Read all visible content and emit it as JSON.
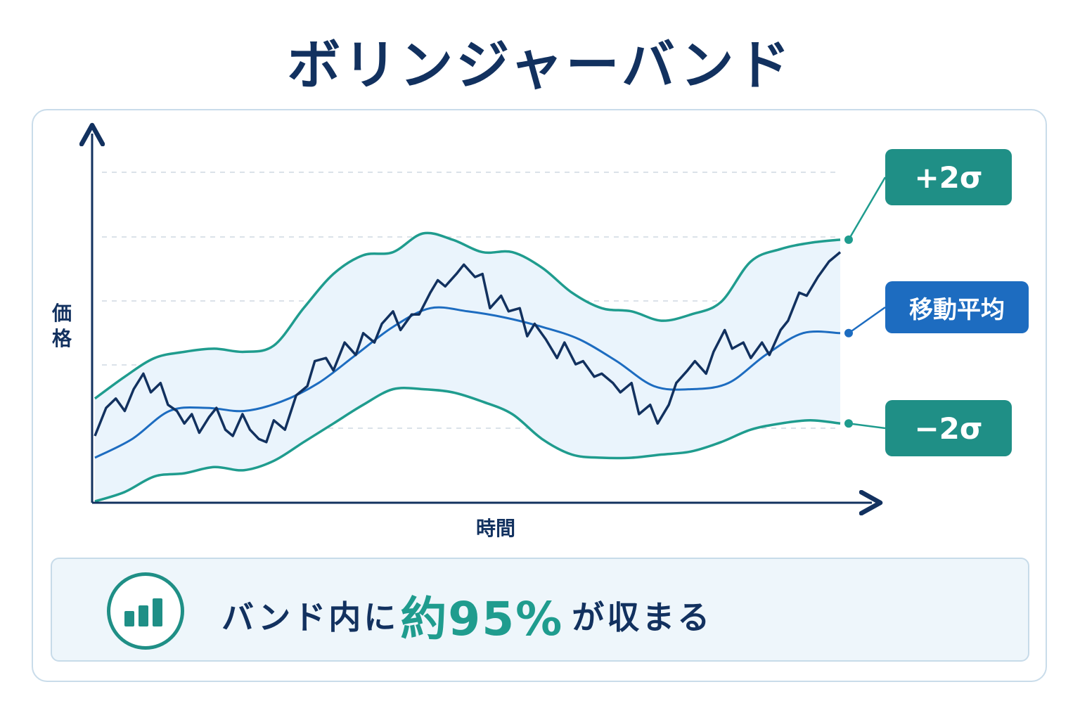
{
  "title": "ボリンジャーバンド",
  "colors": {
    "band": "#1f9c8e",
    "band_fill": "#eaf4fc",
    "moving_average": "#1d6cc0",
    "price": "#12315f",
    "tag_band": "#1f8f86",
    "tag_ma": "#1d6cc0",
    "highlight": "#1f9c8e"
  },
  "chart_data": {
    "type": "line",
    "ylabel": "価格",
    "xlabel": "時間",
    "grid": "horizontal dashed",
    "ylim": [
      0,
      100
    ],
    "xlim": [
      0,
      100
    ],
    "series": [
      {
        "name": "+2σ",
        "style": "band-upper",
        "x": [
          0,
          4,
          8,
          12,
          16,
          20,
          24,
          28,
          32,
          36,
          40,
          44,
          48,
          52,
          56,
          60,
          64,
          68,
          72,
          76,
          80,
          84,
          88,
          92,
          96,
          100
        ],
        "y": [
          33,
          40,
          46,
          48,
          49,
          48,
          50,
          62,
          73,
          79,
          80,
          86,
          84,
          80,
          80,
          75,
          67,
          62,
          61,
          58,
          60,
          64,
          77,
          81,
          83,
          84
        ]
      },
      {
        "name": "移動平均",
        "style": "ma",
        "x": [
          0,
          5,
          10,
          15,
          20,
          25,
          30,
          35,
          40,
          45,
          50,
          55,
          60,
          65,
          70,
          75,
          80,
          85,
          90,
          95,
          100
        ],
        "y": [
          14,
          20,
          29,
          30,
          29,
          32,
          38,
          47,
          56,
          62,
          61,
          59,
          56,
          52,
          45,
          37,
          36,
          38,
          47,
          54,
          54
        ]
      },
      {
        "name": "−2σ",
        "style": "band-lower",
        "x": [
          0,
          4,
          8,
          12,
          16,
          20,
          24,
          28,
          32,
          36,
          40,
          44,
          48,
          52,
          56,
          60,
          64,
          68,
          72,
          76,
          80,
          84,
          88,
          92,
          96,
          100
        ],
        "y": [
          0,
          3,
          8,
          9,
          11,
          10,
          13,
          19,
          25,
          31,
          36,
          36,
          35,
          32,
          28,
          20,
          15,
          14,
          14,
          15,
          16,
          19,
          23,
          25,
          26,
          25
        ]
      },
      {
        "name": "",
        "style": "price",
        "x": [
          0,
          1.5,
          2.8,
          4,
          5.2,
          6.5,
          7.5,
          8.8,
          9.8,
          11,
          12,
          13,
          14,
          15.3,
          16.3,
          17.5,
          18.5,
          19.8,
          20.8,
          22,
          23,
          24,
          25.5,
          27,
          28.5,
          29.5,
          31,
          32,
          33.5,
          35,
          36,
          37.5,
          38.5,
          40,
          41,
          42.5,
          43.5,
          45,
          46,
          47,
          48.5,
          49.5,
          51,
          52,
          53,
          54.5,
          55.5,
          57,
          58,
          59,
          60.5,
          62,
          63,
          64.5,
          65.5,
          67,
          68,
          69.5,
          70.5,
          72,
          73,
          74.5,
          75.5,
          77,
          78,
          79.5,
          80.5,
          82,
          83,
          84.5,
          85.5,
          87,
          88,
          89.5,
          90.5,
          92,
          93,
          94.5,
          95.5,
          97,
          98.5,
          100
        ],
        "y": [
          21,
          30,
          33,
          29,
          36,
          41,
          35,
          38,
          31,
          29,
          25,
          28,
          22,
          27,
          30,
          23,
          21,
          28,
          23,
          20,
          19,
          26,
          23,
          34,
          37,
          45,
          46,
          42,
          51,
          47,
          54,
          51,
          57,
          61,
          55,
          60,
          60,
          67,
          71,
          69,
          73,
          76,
          72,
          73,
          62,
          66,
          61,
          62,
          53,
          57,
          52,
          46,
          51,
          44,
          45,
          40,
          41,
          38,
          35,
          38,
          28,
          31,
          25,
          31,
          38,
          42,
          45,
          41,
          48,
          55,
          49,
          51,
          46,
          51,
          47,
          55,
          58,
          67,
          66,
          72,
          77,
          80
        ]
      }
    ],
    "labels": [
      "+2σ",
      "移動平均",
      "−2σ"
    ]
  },
  "summary": {
    "icon": "bar-chart-icon",
    "text_before": "バンド内に",
    "highlight": "約95%",
    "text_after": "が収まる"
  }
}
